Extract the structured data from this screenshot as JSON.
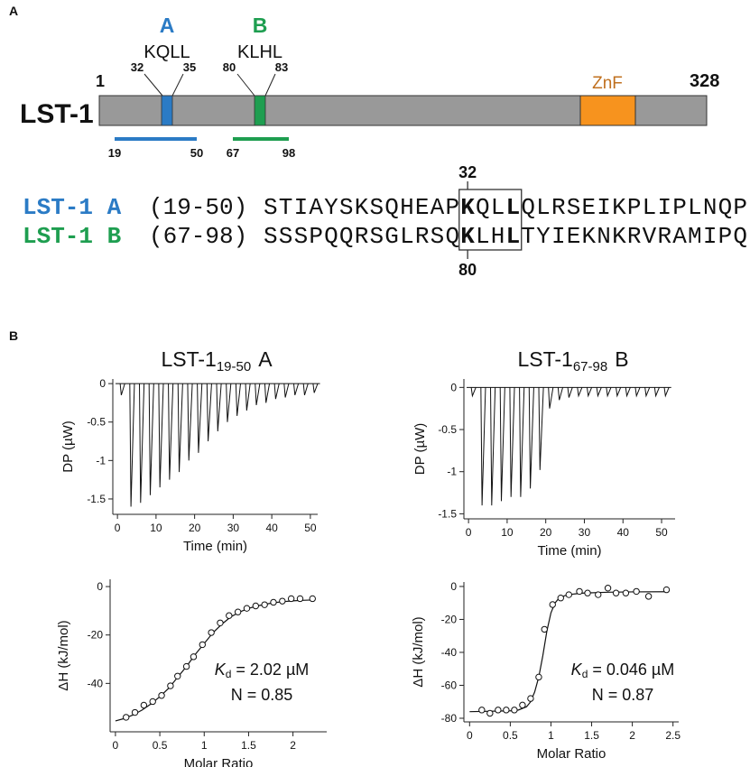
{
  "panel_a": {
    "label": "A",
    "protein": "LST-1",
    "start": 1,
    "end": 328,
    "domain": "ZnF",
    "motifs": [
      {
        "label": "A",
        "sequence": "KQLL",
        "start": 32,
        "end": 35,
        "peptide_start": 19,
        "peptide_end": 50,
        "color": "#2b7bc5"
      },
      {
        "label": "B",
        "sequence": "KLHL",
        "start": 80,
        "end": 83,
        "peptide_start": 67,
        "peptide_end": 98,
        "color": "#1e9e50"
      }
    ],
    "alignment": [
      {
        "name": "LST-1 A",
        "range": "(19-50)",
        "sequence": "STIAYSKSQHEAPKQLLQLRSEIKPLIPLNQP"
      },
      {
        "name": "LST-1 B",
        "range": "(67-98)",
        "sequence": "SSSPQQRSGLRSQKLHLTYIEKNKRVRAMIPQ"
      }
    ]
  },
  "panel_b": {
    "label": "B"
  },
  "chart_data": [
    {
      "type": "itc_raw",
      "title": {
        "text": "LST-1",
        "subscript": "19-50",
        "suffix": "A"
      },
      "x_label": "Time (min)",
      "y_label": "DP (µW)",
      "color": "#111111",
      "x": [
        1,
        3.5,
        6,
        8.5,
        11,
        13.5,
        16,
        18.5,
        21,
        23.5,
        26,
        28.5,
        31,
        33.5,
        36,
        38.5,
        41,
        43.5,
        46,
        48.5,
        51
      ],
      "values": [
        -0.15,
        -1.6,
        -1.55,
        -1.45,
        -1.35,
        -1.25,
        -1.15,
        -1.0,
        -0.9,
        -0.75,
        -0.62,
        -0.5,
        -0.42,
        -0.35,
        -0.28,
        -0.25,
        -0.2,
        -0.18,
        -0.15,
        -0.15,
        -0.12
      ],
      "xlim": [
        -1.2,
        51.9
      ],
      "xticks": [
        0,
        10,
        20,
        30,
        40,
        50
      ],
      "ylim": [
        -1.7,
        0.06
      ],
      "yticks": [
        0,
        -0.5,
        -1,
        -1.5
      ]
    },
    {
      "type": "itc_raw",
      "title": {
        "text": "LST-1",
        "subscript": "67-98",
        "suffix": "B"
      },
      "x_label": "Time (min)",
      "y_label": "DP (µW)",
      "color": "#111111",
      "x": [
        1,
        3.5,
        6,
        8.5,
        11,
        13.5,
        16,
        18.5,
        21,
        23.5,
        26,
        28.5,
        31,
        33.5,
        36,
        38.5,
        41,
        43.5,
        46,
        48.5,
        51
      ],
      "values": [
        -0.1,
        -1.4,
        -1.4,
        -1.35,
        -1.3,
        -1.3,
        -1.2,
        -0.98,
        -0.25,
        -0.15,
        -0.12,
        -0.1,
        -0.1,
        -0.1,
        -0.1,
        -0.1,
        -0.1,
        -0.1,
        -0.1,
        -0.1,
        -0.1
      ],
      "xlim": [
        -1.2,
        53.5
      ],
      "xticks": [
        0,
        10,
        20,
        30,
        40,
        50
      ],
      "ylim": [
        -1.56,
        0.1
      ],
      "yticks": [
        0,
        -0.5,
        -1,
        -1.5
      ]
    },
    {
      "type": "scatter",
      "x_label": "Molar Ratio",
      "y_label": "ΔH (kJ/mol)",
      "series": [
        {
          "color": "#111111",
          "x": [
            0.12,
            0.22,
            0.32,
            0.42,
            0.52,
            0.62,
            0.7,
            0.8,
            0.88,
            0.98,
            1.08,
            1.18,
            1.28,
            1.38,
            1.48,
            1.58,
            1.68,
            1.78,
            1.88,
            1.98,
            2.08,
            2.22
          ],
          "values": [
            -54,
            -52,
            -49,
            -47.5,
            -45,
            -41,
            -37,
            -33,
            -29,
            -24,
            -19,
            -15,
            -12,
            -10.5,
            -9,
            -8,
            -7.5,
            -6.5,
            -6,
            -5,
            -5,
            -5
          ]
        },
        {
          "color": "#111111",
          "x": [
            0,
            0.1,
            0.2,
            0.3,
            0.4,
            0.5,
            0.6,
            0.7,
            0.8,
            0.9,
            1.0,
            1.1,
            1.2,
            1.3,
            1.4,
            1.5,
            1.6,
            1.7,
            1.8,
            1.9,
            2.0,
            2.1,
            2.25
          ],
          "values": [
            -55.5,
            -54.5,
            -53,
            -51,
            -48.5,
            -45.5,
            -42,
            -37.5,
            -33,
            -28,
            -23.5,
            -19,
            -15.5,
            -12.5,
            -10.5,
            -9,
            -8,
            -7.2,
            -6.6,
            -6.2,
            -5.9,
            -5.7,
            -5.5
          ]
        }
      ],
      "annotations": [
        {
          "symbol": "K",
          "subscript": "d",
          "text": "= 2.02 µM"
        },
        {
          "text": "N = 0.85"
        }
      ],
      "xlim": [
        -0.06,
        2.38
      ],
      "xticks": [
        0,
        0.5,
        1,
        1.5,
        2
      ],
      "ylim": [
        -60,
        3
      ],
      "yticks": [
        0,
        -20,
        -40
      ]
    },
    {
      "type": "scatter",
      "x_label": "Molar Ratio",
      "y_label": "ΔH (kJ/mol)",
      "series": [
        {
          "color": "#111111",
          "x": [
            0.15,
            0.25,
            0.35,
            0.45,
            0.55,
            0.65,
            0.75,
            0.85,
            0.92,
            1.02,
            1.12,
            1.22,
            1.35,
            1.45,
            1.58,
            1.7,
            1.8,
            1.92,
            2.05,
            2.2,
            2.42
          ],
          "values": [
            -75,
            -77,
            -75,
            -75,
            -75,
            -72,
            -68,
            -55,
            -26,
            -11,
            -7,
            -5,
            -3,
            -4,
            -5,
            -1,
            -4,
            -4,
            -3,
            -6,
            -2
          ]
        },
        {
          "color": "#111111",
          "x": [
            0,
            0.5,
            0.6,
            0.7,
            0.75,
            0.8,
            0.85,
            0.9,
            0.95,
            1.0,
            1.05,
            1.1,
            1.2,
            1.4,
            1.7,
            2.0,
            2.45
          ],
          "values": [
            -76,
            -75.5,
            -75,
            -73,
            -70,
            -64,
            -55,
            -42,
            -27,
            -16,
            -10,
            -7,
            -5,
            -4,
            -3.5,
            -3.3,
            -3.2
          ]
        }
      ],
      "annotations": [
        {
          "symbol": "K",
          "subscript": "d",
          "text": "= 0.046 µM"
        },
        {
          "text": "N = 0.87"
        }
      ],
      "xlim": [
        -0.07,
        2.57
      ],
      "xticks": [
        0,
        0.5,
        1,
        1.5,
        2,
        2.5
      ],
      "ylim": [
        -82.2,
        2.7
      ],
      "yticks": [
        0,
        -20,
        -40,
        -60,
        -80
      ]
    }
  ]
}
